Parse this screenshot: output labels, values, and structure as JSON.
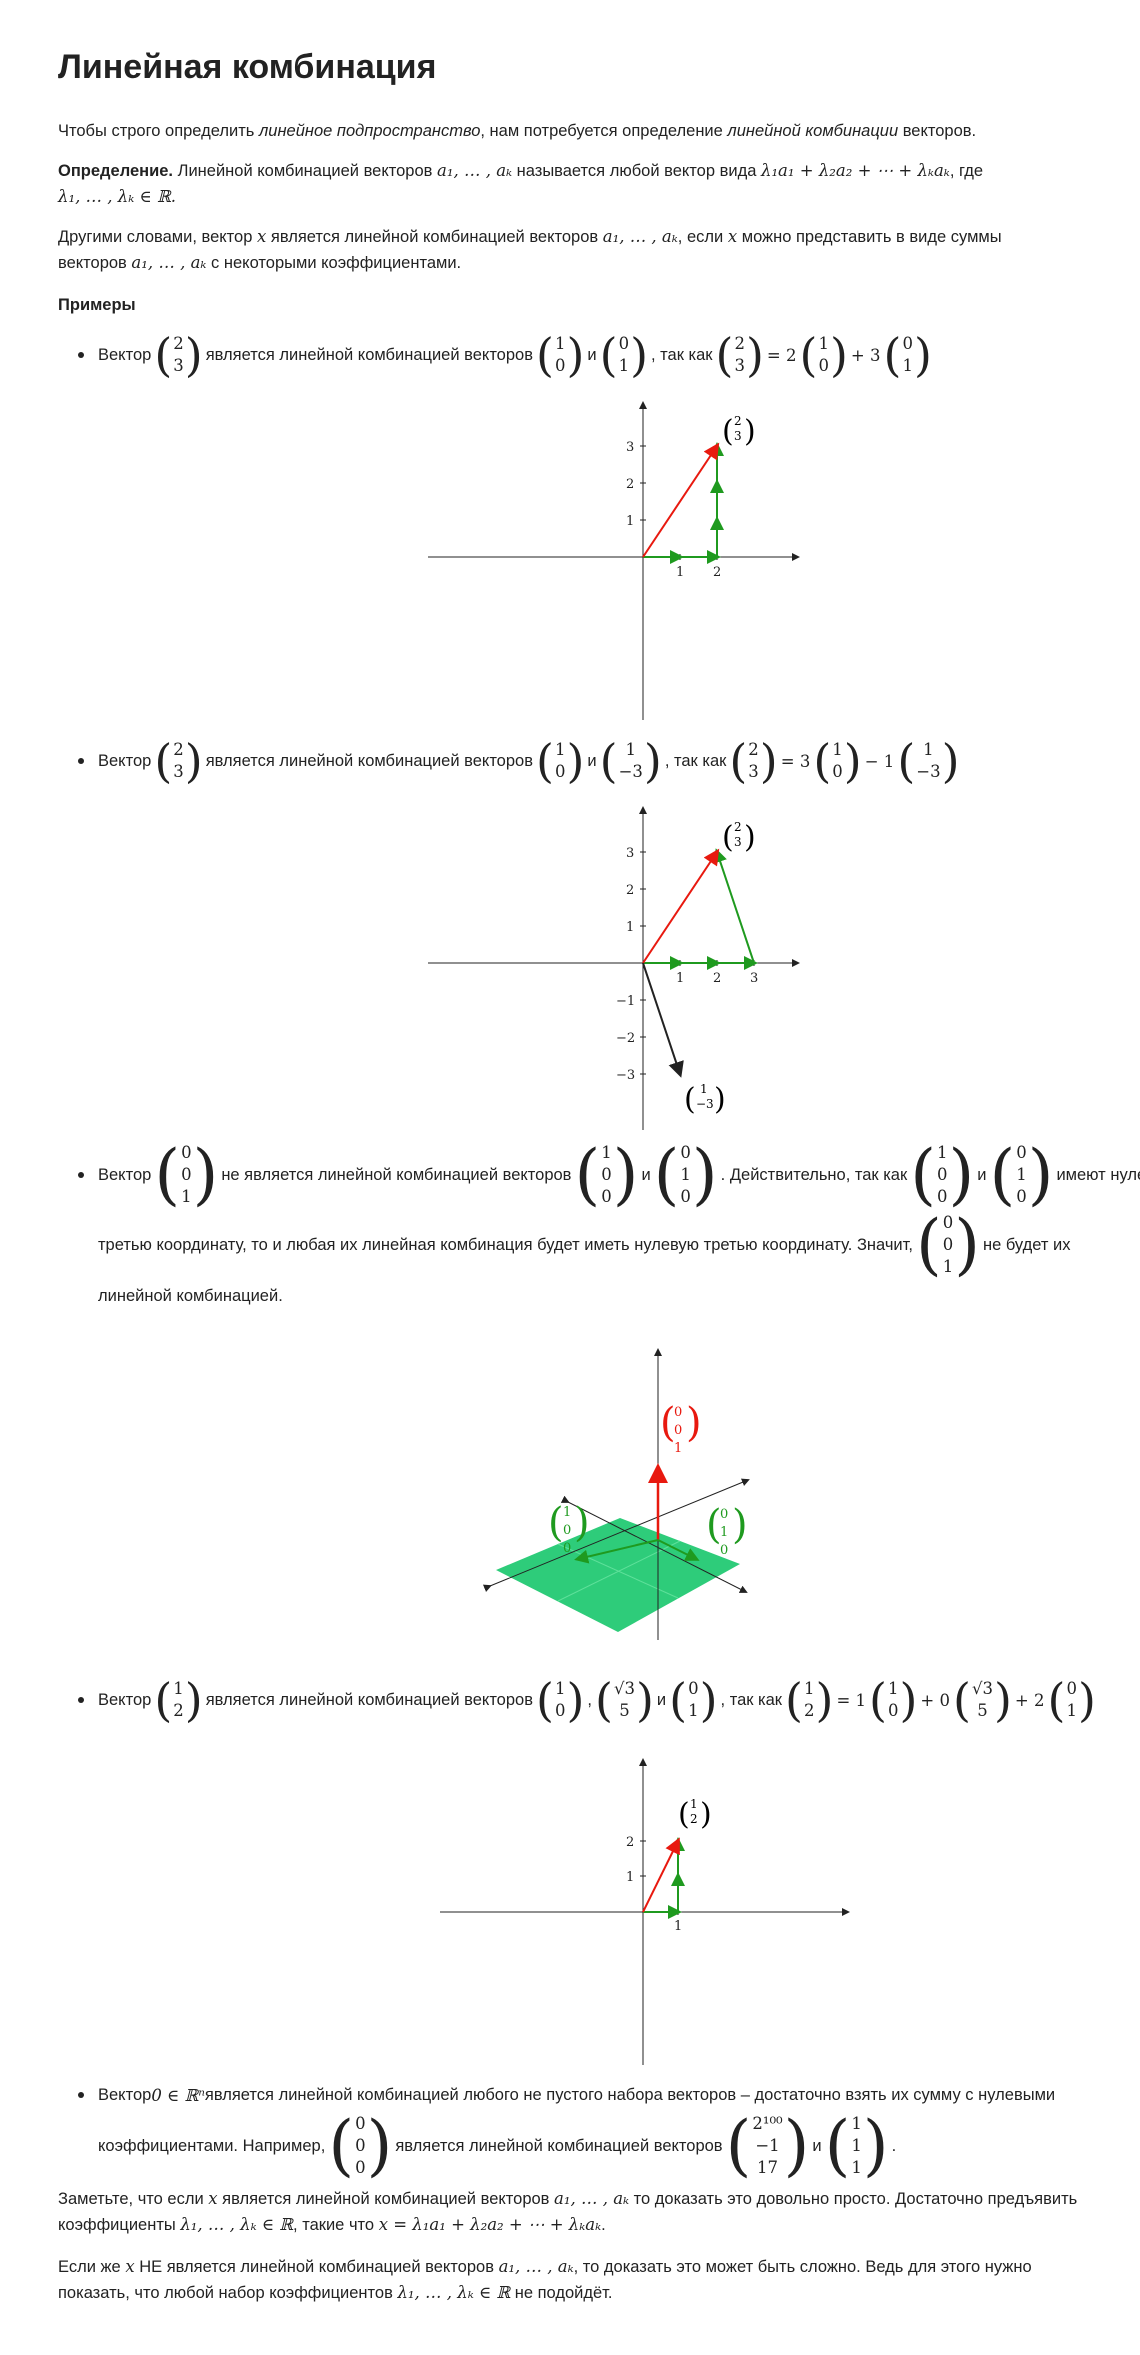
{
  "title": "Линейная комбинация",
  "intro": {
    "p1": "Чтобы строго определить ",
    "p1_em1": "линейное подпространство",
    "p1_mid": ", нам потребуется определение ",
    "p1_em2": "линейной комбинации",
    "p1_end": " векторов."
  },
  "definition": {
    "label": "Определение.",
    "text1": " Линейной комбинацией векторов ",
    "vecs": "a₁, … , aₖ",
    "text2": " называется любой вектор вида ",
    "formula": "λ₁a₁ + λ₂a₂ + ⋯ + λₖaₖ",
    "text3": ", где",
    "lambdas": "λ₁, … , λₖ ∈ ℝ."
  },
  "restate": {
    "t1": "Другими словами, вектор ",
    "x": "x",
    "t2": " является линейной комбинацией векторов ",
    "vecs": "a₁, … , aₖ",
    "t3": ", если ",
    "t4": " можно представить в виде суммы",
    "t5": "векторов ",
    "t6": " с некоторыми коэффициентами."
  },
  "examples_heading": "Примеры",
  "words": {
    "vector": "Вектор",
    "is_lc": "является линейной комбинацией векторов",
    "and": "и",
    "since": ", так как",
    "not_lc": "не является линейной комбинацией векторов",
    "indeed": ". Действительно, так как",
    "have_zero": "имеют нулевую",
    "third_coord": "третью координату, то и любая их линейная комбинация будет иметь нулевую третью координату. Значит,",
    "will_not": "не будет их",
    "lc_end": "линейной комбинацией."
  },
  "ex1": {
    "v": [
      "2",
      "3"
    ],
    "a": [
      "1",
      "0"
    ],
    "b": [
      "0",
      "1"
    ],
    "eq": "= 2",
    "plus": "+ 3"
  },
  "ex2": {
    "v": [
      "2",
      "3"
    ],
    "a": [
      "1",
      "0"
    ],
    "b": [
      "1",
      "−3"
    ],
    "eq": "= 3",
    "minus": "− 1"
  },
  "ex3": {
    "v": [
      "0",
      "0",
      "1"
    ],
    "a": [
      "1",
      "0",
      "0"
    ],
    "b": [
      "0",
      "1",
      "0"
    ]
  },
  "ex4": {
    "v": [
      "1",
      "2"
    ],
    "a": [
      "1",
      "0"
    ],
    "b": [
      "√3",
      "5"
    ],
    "c": [
      "0",
      "1"
    ],
    "eq": "= 1",
    "plus0": "+ 0",
    "plus2": "+ 2"
  },
  "ex5": {
    "t1": "Вектор ",
    "zero": "0 ∈ ℝⁿ",
    "t2": " является линейной комбинацией любого не пустого набора векторов – достаточно взять их сумму с нулевыми",
    "t3": "коэффициентами. Например,",
    "z": [
      "0",
      "0",
      "0"
    ],
    "mid": "является линейной комбинацией векторов",
    "a": [
      "2¹⁰⁰",
      "−1",
      "17"
    ],
    "and": "и",
    "b": [
      "1",
      "1",
      "1"
    ],
    "end": "."
  },
  "note1": {
    "t1": "Заметьте, что если ",
    "t2": " является линейной комбинацией векторов ",
    "vecs": "a₁, … , aₖ",
    "t3": " то доказать это довольно просто. Достаточно предъявить",
    "t4": "коэффициенты ",
    "lambdas": "λ₁, … , λₖ ∈ ℝ",
    "t5": ", такие что ",
    "formula": "x = λ₁a₁ + λ₂a₂ + ⋯ + λₖaₖ",
    "t6": "."
  },
  "note2": {
    "t1": "Если же ",
    "t2": " НЕ является линейной комбинацией векторов ",
    "vecs": "a₁, … , aₖ",
    "t3": ", то доказать это может быть сложно. Ведь для этого нужно",
    "t4": "показать, что любой набор коэффициентов ",
    "lambdas": "λ₁, … , λₖ ∈ ℝ",
    "t5": " не подойдёт."
  },
  "plot1": {
    "ticks_x": [
      "1",
      "2"
    ],
    "ticks_y": [
      "1",
      "2",
      "3"
    ],
    "label": [
      "2",
      "3"
    ]
  },
  "plot2": {
    "ticks_x": [
      "1",
      "2",
      "3"
    ],
    "ticks_y": [
      "3",
      "2",
      "1",
      "−1",
      "−2",
      "−3"
    ],
    "label_top": [
      "2",
      "3"
    ],
    "label_bottom": [
      "1",
      "−3"
    ]
  },
  "plot3": {
    "red": [
      "0",
      "0",
      "1"
    ],
    "green_left": [
      "1",
      "0",
      "0"
    ],
    "green_right": [
      "0",
      "1",
      "0"
    ]
  },
  "plot4": {
    "ticks_x": [
      "1"
    ],
    "ticks_y": [
      "1",
      "2"
    ],
    "label": [
      "1",
      "2"
    ]
  },
  "colors": {
    "red": "#e8190f",
    "green": "#1f9a1f",
    "plane": "#2ecc7a",
    "axis": "#222222"
  }
}
